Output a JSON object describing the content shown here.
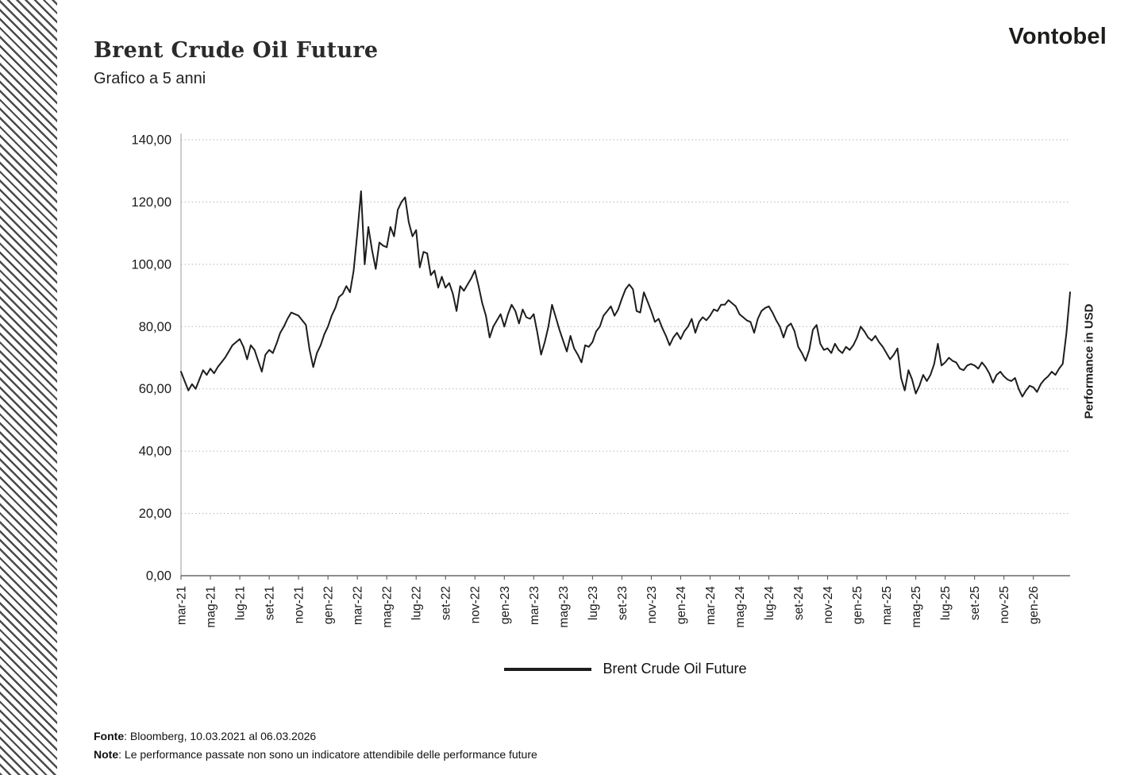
{
  "brand": {
    "logo_text": "Vontobel"
  },
  "header": {
    "title": "Brent Crude Oil Future",
    "subtitle": "Grafico a 5 anni"
  },
  "chart_data": {
    "type": "line",
    "title": "Brent Crude Oil Future",
    "ylabel": "Performance in USD",
    "xlabel": "",
    "ylim": [
      0,
      140
    ],
    "y_tick_step": 20,
    "y_ticks": [
      "0,00",
      "20,00",
      "40,00",
      "60,00",
      "80,00",
      "100,00",
      "120,00",
      "140,00"
    ],
    "x_ticks": [
      "mar-21",
      "mag-21",
      "lug-21",
      "set-21",
      "nov-21",
      "gen-22",
      "mar-22",
      "mag-22",
      "lug-22",
      "set-22",
      "nov-22",
      "gen-23",
      "mar-23",
      "mag-23",
      "lug-23",
      "set-23",
      "nov-23",
      "gen-24",
      "mar-24",
      "mag-24",
      "lug-24",
      "set-24",
      "nov-24",
      "gen-25",
      "mar-25",
      "mag-25",
      "lug-25",
      "set-25",
      "nov-25",
      "gen-26"
    ],
    "x_tick_month_step": 2,
    "points_per_month": 4,
    "grid": "horizontal-dotted",
    "legend_position": "bottom",
    "line_color": "#1d1d1b",
    "series_name": "Brent Crude Oil Future",
    "values": [
      65.5,
      62.5,
      59.5,
      61.5,
      60,
      63,
      66,
      64.5,
      66.5,
      65,
      67,
      68.5,
      70,
      72,
      74,
      75,
      76,
      73.5,
      69.5,
      74,
      72.5,
      69,
      65.5,
      71,
      72.5,
      71.5,
      74.5,
      78,
      80,
      82.5,
      84.5,
      84,
      83.5,
      82,
      80.5,
      72.5,
      67,
      71.5,
      74,
      77.5,
      80,
      83.5,
      86,
      89.5,
      90.5,
      93,
      91,
      98,
      110,
      123.5,
      100,
      112,
      104.5,
      98.5,
      107,
      106,
      105.5,
      112,
      109,
      117.5,
      120,
      121.5,
      113.5,
      109,
      111,
      99,
      104,
      103.5,
      96.5,
      98,
      92.5,
      96,
      92.5,
      94,
      90.5,
      85,
      93,
      91.5,
      93.5,
      95.5,
      98,
      93,
      87.5,
      83.5,
      76.5,
      80,
      82,
      84,
      80,
      84,
      87,
      85,
      81,
      85.5,
      83,
      82.5,
      84,
      78,
      71,
      75,
      80,
      87,
      83,
      79,
      75.5,
      72,
      77,
      73,
      71,
      68.5,
      74,
      73.5,
      75,
      78.5,
      80,
      83.5,
      85,
      86.5,
      83.5,
      85.5,
      89,
      92,
      93.5,
      92,
      85,
      84.5,
      91,
      88,
      85,
      81.5,
      82.5,
      79.5,
      77,
      74,
      76.5,
      78,
      76,
      78.5,
      80,
      82.5,
      78,
      81.5,
      83,
      82,
      83.5,
      85.5,
      85,
      87,
      87,
      88.5,
      87.5,
      86.5,
      84,
      83,
      82,
      81.5,
      78,
      82.5,
      85,
      86,
      86.5,
      84.5,
      82,
      80,
      76.5,
      80,
      81,
      78.5,
      73.5,
      71.5,
      69,
      72.5,
      79,
      80.5,
      74.5,
      72.5,
      73,
      71.5,
      74.5,
      72.5,
      71.5,
      73.5,
      72.5,
      74,
      76.5,
      80,
      78.5,
      76.5,
      75.5,
      77,
      75,
      73.5,
      71.5,
      69.5,
      71,
      73,
      63.5,
      59.5,
      66,
      63,
      58.5,
      61,
      64.5,
      62.5,
      64.5,
      68,
      74.5,
      67.5,
      68.5,
      70,
      69,
      68.5,
      66.5,
      66,
      67.5,
      68,
      67.5,
      66.5,
      68.5,
      67,
      65,
      62,
      64.5,
      65.5,
      64,
      63,
      62.5,
      63.5,
      60,
      57.5,
      59.5,
      61,
      60.5,
      59,
      61.5,
      63,
      64,
      65.5,
      64.5,
      66.5,
      68,
      78,
      91
    ]
  },
  "legend": {
    "label": "Brent Crude Oil Future"
  },
  "footer": {
    "fonte_label": "Fonte",
    "fonte_text": ": Bloomberg, 10.03.2021 al 06.03.2026",
    "note_label": "Note",
    "note_text": ": Le performance passate non sono un indicatore attendibile delle performance future"
  }
}
